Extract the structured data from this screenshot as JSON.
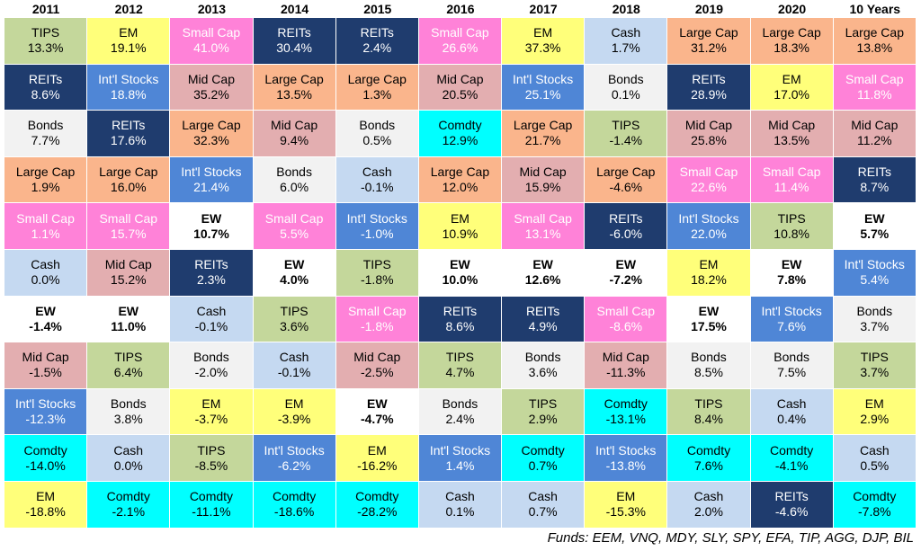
{
  "colors": {
    "TIPS": {
      "bg": "#c4d79b",
      "fg": "#000000"
    },
    "EM": {
      "bg": "#ffff7a",
      "fg": "#000000"
    },
    "Small Cap": {
      "bg": "#ff82d8",
      "fg": "#ffffff"
    },
    "REITs": {
      "bg": "#1f3c6e",
      "fg": "#ffffff"
    },
    "Cash": {
      "bg": "#c5d9f1",
      "fg": "#000000"
    },
    "Large Cap": {
      "bg": "#fab58c",
      "fg": "#000000"
    },
    "Int'l Stocks": {
      "bg": "#4f86d6",
      "fg": "#ffffff"
    },
    "Mid Cap": {
      "bg": "#e3aeb0",
      "fg": "#000000"
    },
    "Bonds": {
      "bg": "#f2f2f2",
      "fg": "#000000"
    },
    "Comdty": {
      "bg": "#00ffff",
      "fg": "#000000"
    },
    "EW": {
      "bg": "#ffffff",
      "fg": "#000000"
    }
  },
  "chart_data": {
    "type": "table",
    "title": "",
    "columns": [
      "2011",
      "2012",
      "2013",
      "2014",
      "2015",
      "2016",
      "2017",
      "2018",
      "2019",
      "2020",
      "10 Years"
    ],
    "rows": [
      [
        [
          "TIPS",
          "13.3%"
        ],
        [
          "EM",
          "19.1%"
        ],
        [
          "Small Cap",
          "41.0%"
        ],
        [
          "REITs",
          "30.4%"
        ],
        [
          "REITs",
          "2.4%"
        ],
        [
          "Small Cap",
          "26.6%"
        ],
        [
          "EM",
          "37.3%"
        ],
        [
          "Cash",
          "1.7%"
        ],
        [
          "Large Cap",
          "31.2%"
        ],
        [
          "Large Cap",
          "18.3%"
        ],
        [
          "Large Cap",
          "13.8%"
        ]
      ],
      [
        [
          "REITs",
          "8.6%"
        ],
        [
          "Int'l Stocks",
          "18.8%"
        ],
        [
          "Mid Cap",
          "35.2%"
        ],
        [
          "Large Cap",
          "13.5%"
        ],
        [
          "Large Cap",
          "1.3%"
        ],
        [
          "Mid Cap",
          "20.5%"
        ],
        [
          "Int'l Stocks",
          "25.1%"
        ],
        [
          "Bonds",
          "0.1%"
        ],
        [
          "REITs",
          "28.9%"
        ],
        [
          "EM",
          "17.0%"
        ],
        [
          "Small Cap",
          "11.8%"
        ]
      ],
      [
        [
          "Bonds",
          "7.7%"
        ],
        [
          "REITs",
          "17.6%"
        ],
        [
          "Large Cap",
          "32.3%"
        ],
        [
          "Mid Cap",
          "9.4%"
        ],
        [
          "Bonds",
          "0.5%"
        ],
        [
          "Comdty",
          "12.9%"
        ],
        [
          "Large Cap",
          "21.7%"
        ],
        [
          "TIPS",
          "-1.4%"
        ],
        [
          "Mid Cap",
          "25.8%"
        ],
        [
          "Mid Cap",
          "13.5%"
        ],
        [
          "Mid Cap",
          "11.2%"
        ]
      ],
      [
        [
          "Large Cap",
          "1.9%"
        ],
        [
          "Large Cap",
          "16.0%"
        ],
        [
          "Int'l Stocks",
          "21.4%"
        ],
        [
          "Bonds",
          "6.0%"
        ],
        [
          "Cash",
          "-0.1%"
        ],
        [
          "Large Cap",
          "12.0%"
        ],
        [
          "Mid Cap",
          "15.9%"
        ],
        [
          "Large Cap",
          "-4.6%"
        ],
        [
          "Small Cap",
          "22.6%"
        ],
        [
          "Small Cap",
          "11.4%"
        ],
        [
          "REITs",
          "8.7%"
        ]
      ],
      [
        [
          "Small Cap",
          "1.1%"
        ],
        [
          "Small Cap",
          "15.7%"
        ],
        [
          "EW",
          "10.7%"
        ],
        [
          "Small Cap",
          "5.5%"
        ],
        [
          "Int'l Stocks",
          "-1.0%"
        ],
        [
          "EM",
          "10.9%"
        ],
        [
          "Small Cap",
          "13.1%"
        ],
        [
          "REITs",
          "-6.0%"
        ],
        [
          "Int'l Stocks",
          "22.0%"
        ],
        [
          "TIPS",
          "10.8%"
        ],
        [
          "EW",
          "5.7%"
        ]
      ],
      [
        [
          "Cash",
          "0.0%"
        ],
        [
          "Mid Cap",
          "15.2%"
        ],
        [
          "REITs",
          "2.3%"
        ],
        [
          "EW",
          "4.0%"
        ],
        [
          "TIPS",
          "-1.8%"
        ],
        [
          "EW",
          "10.0%"
        ],
        [
          "EW",
          "12.6%"
        ],
        [
          "EW",
          "-7.2%"
        ],
        [
          "EM",
          "18.2%"
        ],
        [
          "EW",
          "7.8%"
        ],
        [
          "Int'l Stocks",
          "5.4%"
        ]
      ],
      [
        [
          "EW",
          "-1.4%"
        ],
        [
          "EW",
          "11.0%"
        ],
        [
          "Cash",
          "-0.1%"
        ],
        [
          "TIPS",
          "3.6%"
        ],
        [
          "Small Cap",
          "-1.8%"
        ],
        [
          "REITs",
          "8.6%"
        ],
        [
          "REITs",
          "4.9%"
        ],
        [
          "Small Cap",
          "-8.6%"
        ],
        [
          "EW",
          "17.5%"
        ],
        [
          "Int'l Stocks",
          "7.6%"
        ],
        [
          "Bonds",
          "3.7%"
        ]
      ],
      [
        [
          "Mid Cap",
          "-1.5%"
        ],
        [
          "TIPS",
          "6.4%"
        ],
        [
          "Bonds",
          "-2.0%"
        ],
        [
          "Cash",
          "-0.1%"
        ],
        [
          "Mid Cap",
          "-2.5%"
        ],
        [
          "TIPS",
          "4.7%"
        ],
        [
          "Bonds",
          "3.6%"
        ],
        [
          "Mid Cap",
          "-11.3%"
        ],
        [
          "Bonds",
          "8.5%"
        ],
        [
          "Bonds",
          "7.5%"
        ],
        [
          "TIPS",
          "3.7%"
        ]
      ],
      [
        [
          "Int'l Stocks",
          "-12.3%"
        ],
        [
          "Bonds",
          "3.8%"
        ],
        [
          "EM",
          "-3.7%"
        ],
        [
          "EM",
          "-3.9%"
        ],
        [
          "EW",
          "-4.7%"
        ],
        [
          "Bonds",
          "2.4%"
        ],
        [
          "TIPS",
          "2.9%"
        ],
        [
          "Comdty",
          "-13.1%"
        ],
        [
          "TIPS",
          "8.4%"
        ],
        [
          "Cash",
          "0.4%"
        ],
        [
          "EM",
          "2.9%"
        ]
      ],
      [
        [
          "Comdty",
          "-14.0%"
        ],
        [
          "Cash",
          "0.0%"
        ],
        [
          "TIPS",
          "-8.5%"
        ],
        [
          "Int'l Stocks",
          "-6.2%"
        ],
        [
          "EM",
          "-16.2%"
        ],
        [
          "Int'l Stocks",
          "1.4%"
        ],
        [
          "Comdty",
          "0.7%"
        ],
        [
          "Int'l Stocks",
          "-13.8%"
        ],
        [
          "Comdty",
          "7.6%"
        ],
        [
          "Comdty",
          "-4.1%"
        ],
        [
          "Cash",
          "0.5%"
        ]
      ],
      [
        [
          "EM",
          "-18.8%"
        ],
        [
          "Comdty",
          "-2.1%"
        ],
        [
          "Comdty",
          "-11.1%"
        ],
        [
          "Comdty",
          "-18.6%"
        ],
        [
          "Comdty",
          "-28.2%"
        ],
        [
          "Cash",
          "0.1%"
        ],
        [
          "Cash",
          "0.7%"
        ],
        [
          "EM",
          "-15.3%"
        ],
        [
          "Cash",
          "2.0%"
        ],
        [
          "REITs",
          "-4.6%"
        ],
        [
          "Comdty",
          "-7.8%"
        ]
      ]
    ],
    "footnote": "Funds: EEM, VNQ, MDY, SLY, SPY, EFA, TIP, AGG, DJP, BIL"
  }
}
